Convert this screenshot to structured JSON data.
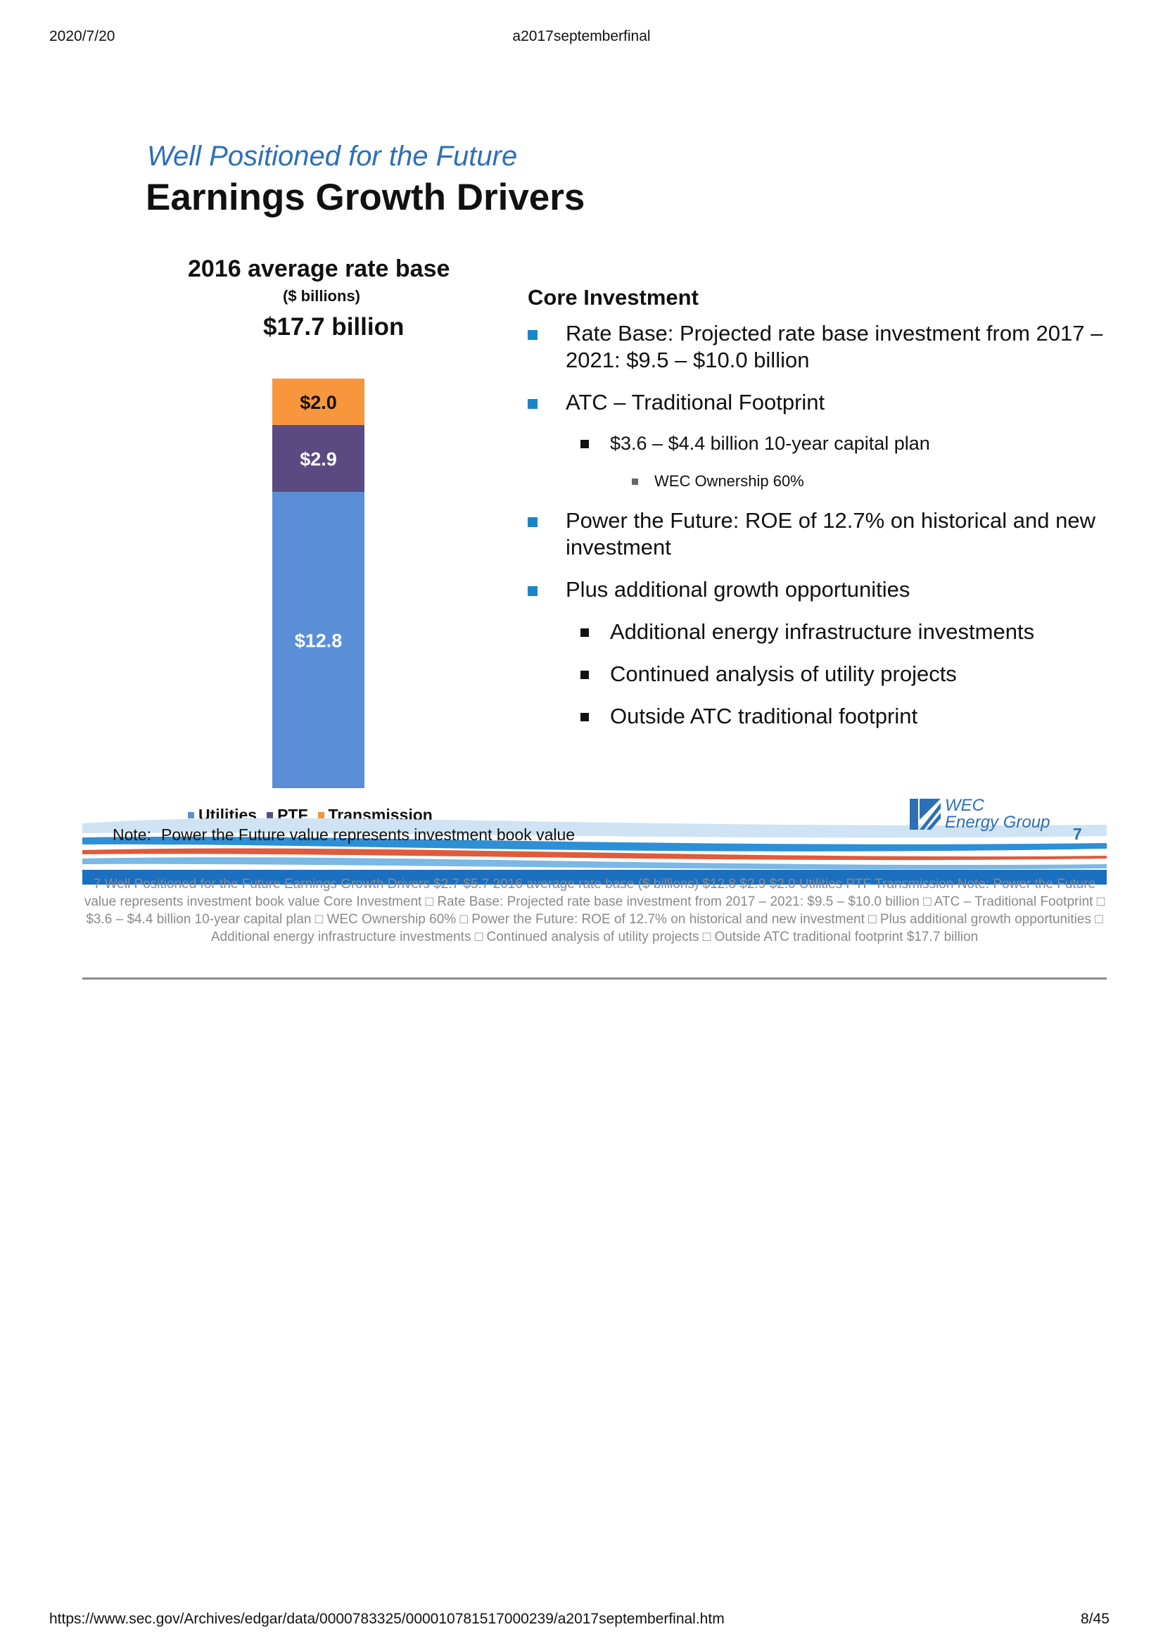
{
  "browser_header": {
    "date": "2020/7/20",
    "doc_title": "a2017septemberfinal"
  },
  "slide": {
    "subtitle": "Well Positioned for the Future",
    "title": "Earnings Growth Drivers",
    "page_number": "7",
    "note_label": "Note:",
    "note_text": "Power the Future value represents investment book value",
    "logo": {
      "line1": "WEC",
      "line2": "Energy Group"
    }
  },
  "chart_data": {
    "type": "bar",
    "stacked": true,
    "title": "2016 average rate base",
    "unit_label": "($ billions)",
    "total_label": "$17.7 billion",
    "categories": [
      "2016"
    ],
    "series": [
      {
        "name": "Utilities",
        "values": [
          12.8
        ],
        "label": "$12.8",
        "color": "#5a8fd8",
        "label_color": "#ffffff"
      },
      {
        "name": "PTF",
        "values": [
          2.9
        ],
        "label": "$2.9",
        "color": "#5b4a82",
        "label_color": "#ffffff"
      },
      {
        "name": "Transmission",
        "values": [
          2.0
        ],
        "label": "$2.0",
        "color": "#f7963c",
        "label_color": "#111111"
      }
    ],
    "ylim": [
      0,
      17.7
    ],
    "grid": false,
    "legend_position": "bottom"
  },
  "core": {
    "heading": "Core Investment",
    "bullets": {
      "rate_base": "Rate Base: Projected rate base investment from 2017 – 2021: $9.5 – $10.0 billion",
      "atc": "ATC – Traditional Footprint",
      "atc_plan": "$3.6 – $4.4 billion 10-year capital plan",
      "wec_ownership": "WEC Ownership 60%",
      "ptf": "Power the Future: ROE of 12.7% on historical and new investment",
      "plus": "Plus additional growth opportunities",
      "energy_infra": "Additional energy infrastructure investments",
      "utility_projects": "Continued analysis of utility projects",
      "outside_atc": "Outside ATC traditional footprint"
    }
  },
  "ocr_text": "7  Well Positioned for the Future  Earnings Growth Drivers  $2.7  $5.7  2016 average rate base  ($ billions)  $12.8  $2.9  $2.0  Utilities PTF Transmission Note: Power the Future value represents investment book value  Core Investment  □ Rate Base: Projected rate base investment from  2017 – 2021: $9.5 – $10.0 billion  □ ATC – Traditional Footprint  □ $3.6 – $4.4 billion 10-year capital plan  □ WEC Ownership 60%  □ Power the Future: ROE of 12.7% on historical and  new investment  □ Plus additional growth opportunities  □ Additional energy infrastructure investments  □ Continued analysis of utility projects  □ Outside ATC traditional footprint   $17.7 billion",
  "footer": {
    "url": "https://www.sec.gov/Archives/edgar/data/0000783325/000010781517000239/a2017septemberfinal.htm",
    "page": "8/45"
  }
}
